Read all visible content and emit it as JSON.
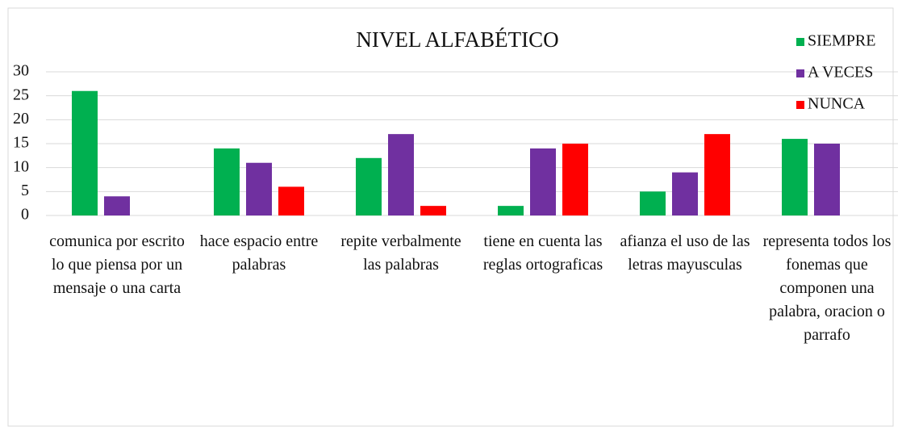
{
  "chart_data": {
    "type": "bar",
    "title": "NIVEL ALFABÉTICO",
    "categories": [
      "comunica por escrito lo que piensa por un mensaje o una carta",
      "hace espacio entre palabras",
      "repite verbalmente las palabras",
      "tiene en cuenta las reglas ortograficas",
      "afianza el uso de las letras mayusculas",
      "representa todos los fonemas que componen una palabra, oracion o parrafo"
    ],
    "series": [
      {
        "name": "SIEMPRE",
        "color": "#00b050",
        "values": [
          26,
          14,
          12,
          2,
          5,
          16
        ]
      },
      {
        "name": "A VECES",
        "color": "#7030a0",
        "values": [
          4,
          11,
          17,
          14,
          9,
          15
        ]
      },
      {
        "name": "NUNCA",
        "color": "#ff0000",
        "values": [
          0,
          6,
          2,
          15,
          17,
          0
        ]
      }
    ],
    "ylim": [
      0,
      30
    ],
    "yticks": [
      0,
      5,
      10,
      15,
      20,
      25,
      30
    ],
    "grid": true,
    "legend": "top-right"
  }
}
